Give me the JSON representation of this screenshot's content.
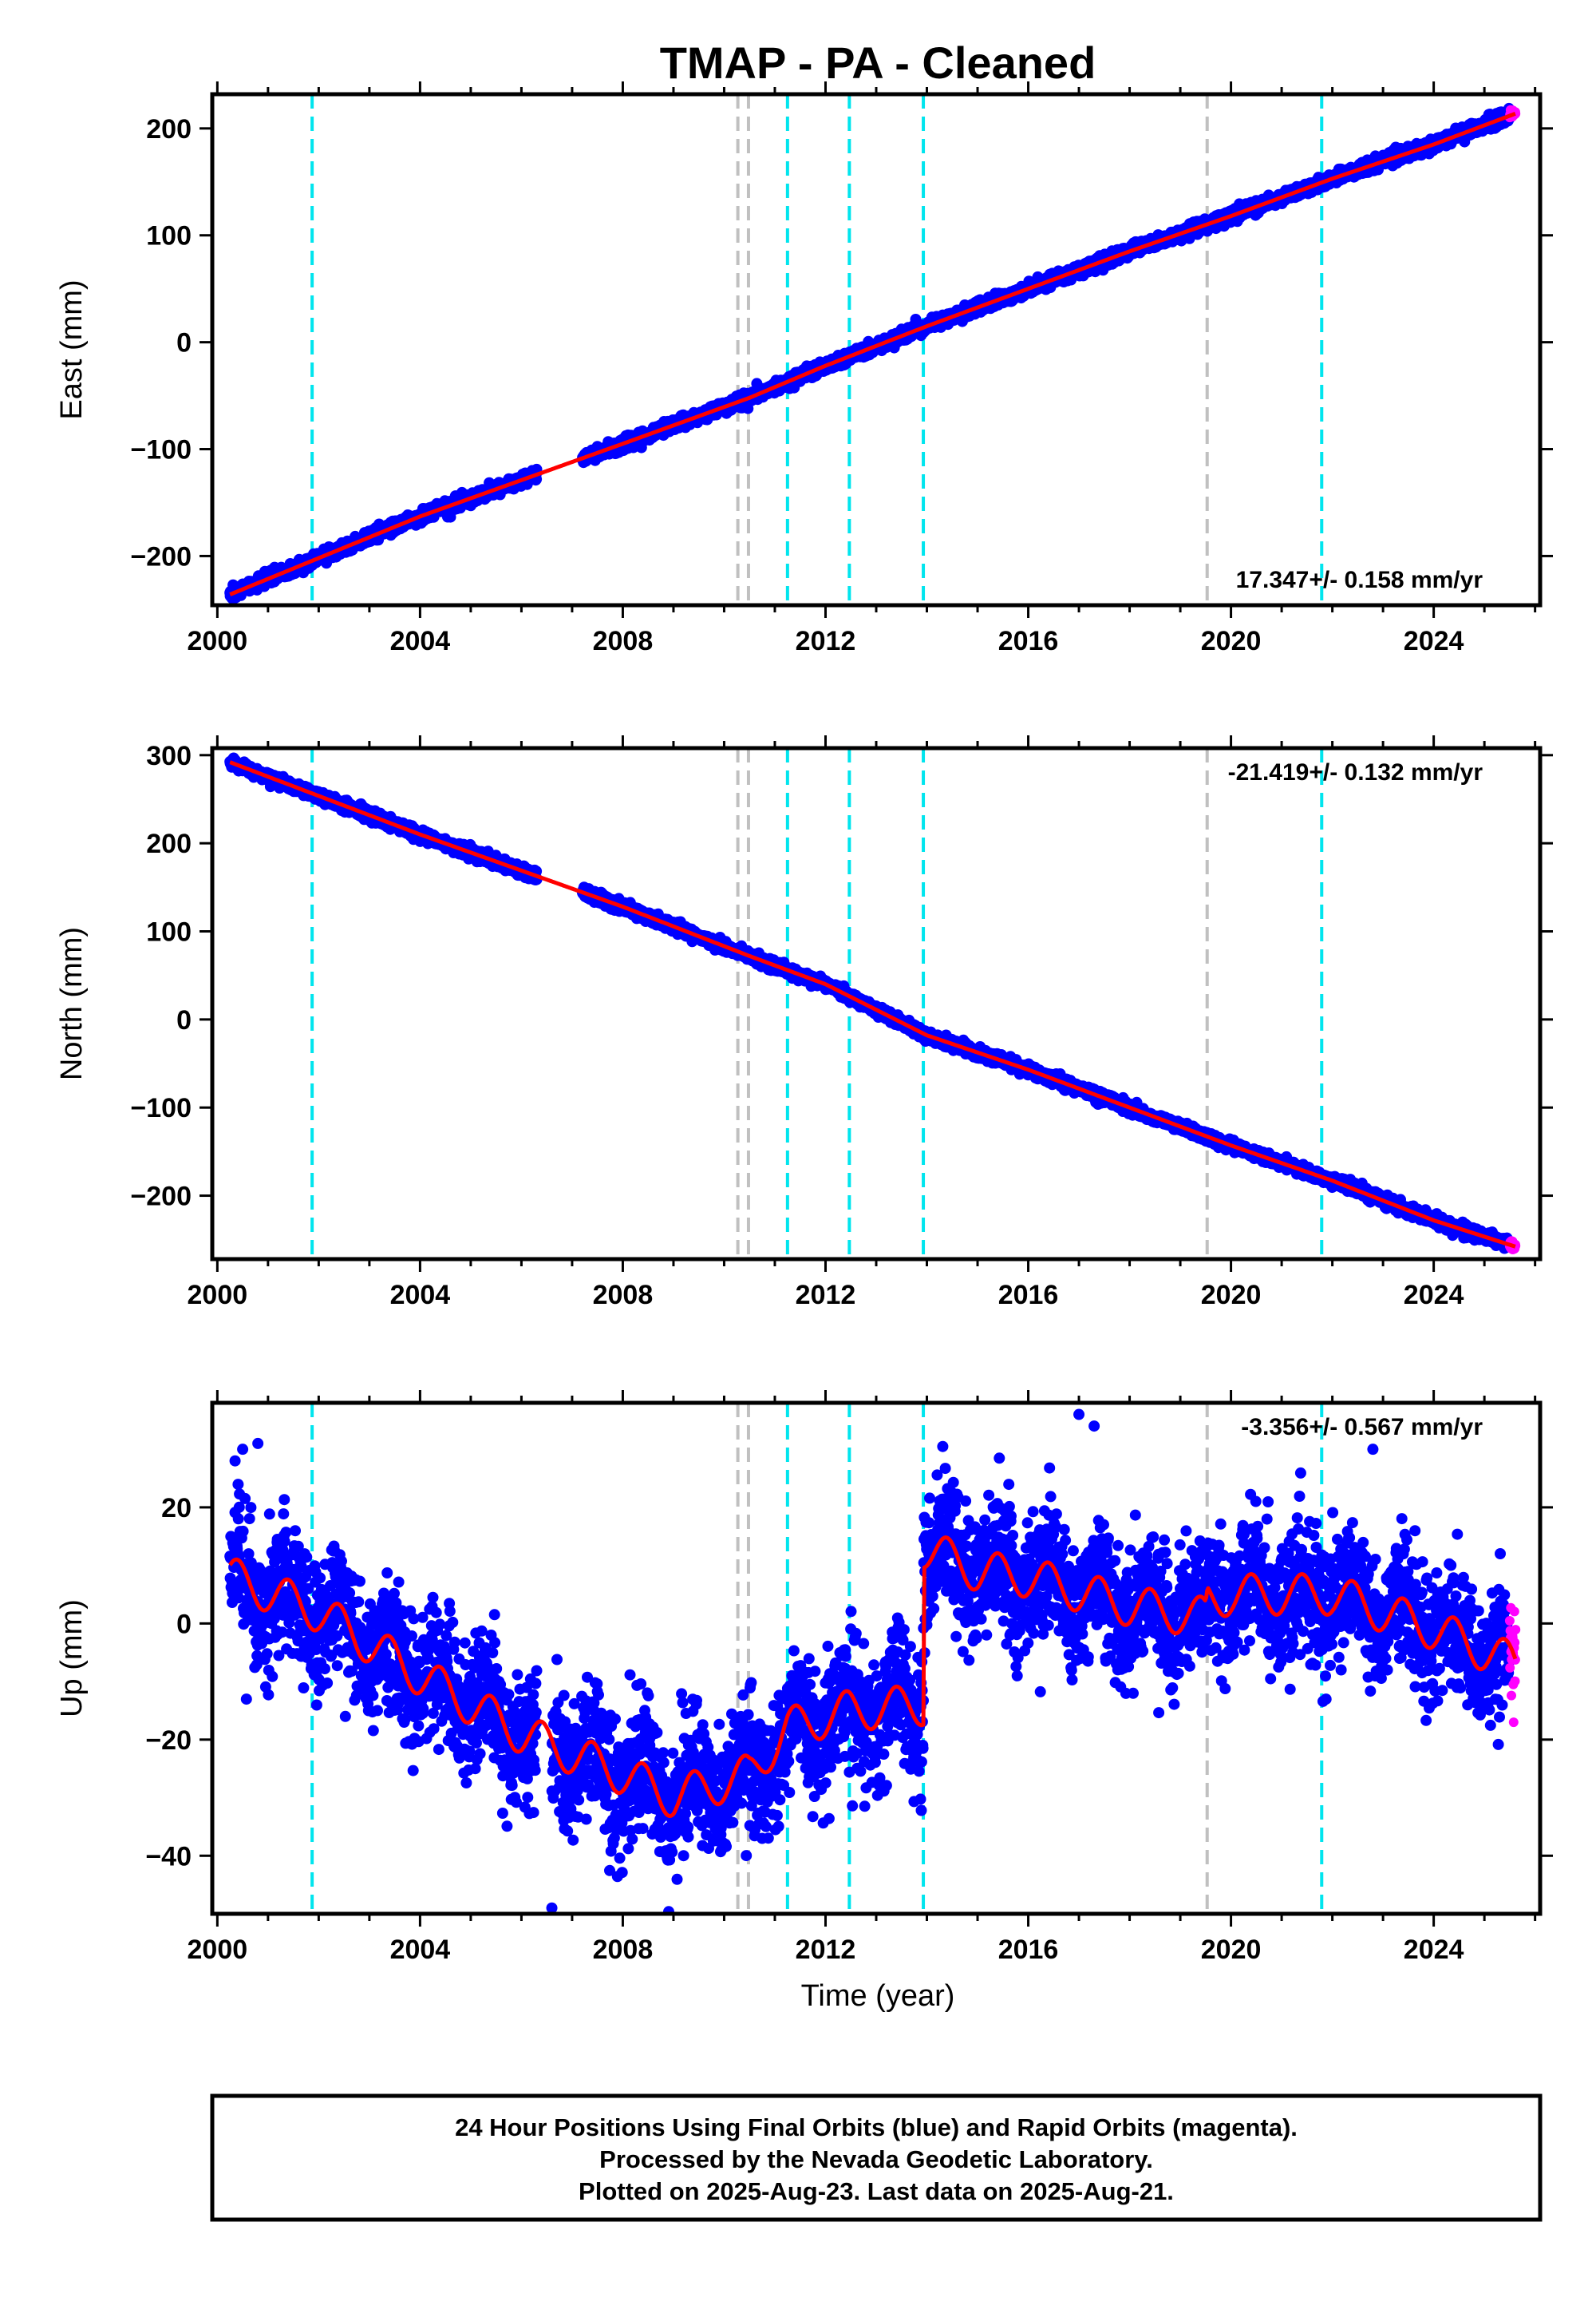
{
  "chart_data": {
    "type": "scatter",
    "title": "TMAP  - PA - Cleaned",
    "xlabel": "Time (year)",
    "x_ticks": [
      2000,
      2004,
      2008,
      2012,
      2016,
      2020,
      2024
    ],
    "xlim": [
      1999.9,
      2026.1
    ],
    "colors": {
      "final_orbits": "#0000ff",
      "rapid_orbits": "#ff00ff",
      "model": "#ff0000",
      "equipment_change": "#00e5ee",
      "earthquake": "#c0c0c0"
    },
    "series_legend": "24 Hour Positions Using Final Orbits (blue) and Rapid Orbits (magenta).",
    "vertical_lines": {
      "cyan": [
        2001.87,
        2011.25,
        2012.47,
        2013.93,
        2021.79
      ],
      "gray": [
        2010.27,
        2010.48,
        2019.53
      ]
    },
    "panels": [
      {
        "ylabel": "East (mm)",
        "ylim": [
          -246,
          232
        ],
        "y_ticks": [
          -200,
          -100,
          0,
          100,
          200
        ],
        "rate_text": "17.347+/- 0.158 mm/yr",
        "rate_position": "bottom-right",
        "trend_points": [
          [
            2000.25,
            -236
          ],
          [
            2004,
            -163
          ],
          [
            2008,
            -95
          ],
          [
            2010.5,
            -52
          ],
          [
            2012,
            -22
          ],
          [
            2014,
            15
          ],
          [
            2016,
            50
          ],
          [
            2018,
            85
          ],
          [
            2020,
            118
          ],
          [
            2022,
            153
          ],
          [
            2024,
            185
          ],
          [
            2025.62,
            214
          ]
        ],
        "data_gap": [
          2006.3,
          2007.2
        ],
        "scatter_sd": 2.8
      },
      {
        "ylabel": "North (mm)",
        "ylim": [
          -272,
          308
        ],
        "y_ticks": [
          -200,
          -100,
          0,
          100,
          200,
          300
        ],
        "rate_text": "-21.419+/- 0.132 mm/yr",
        "rate_position": "top-right",
        "trend_points": [
          [
            2000.25,
            292
          ],
          [
            2004,
            210
          ],
          [
            2008,
            128
          ],
          [
            2010.5,
            72
          ],
          [
            2012,
            40
          ],
          [
            2014,
            -18
          ],
          [
            2016,
            -57
          ],
          [
            2018,
            -100
          ],
          [
            2020,
            -143
          ],
          [
            2022,
            -183
          ],
          [
            2024,
            -228
          ],
          [
            2025.62,
            -258
          ]
        ],
        "data_gap": [
          2006.3,
          2007.2
        ],
        "scatter_sd": 3
      },
      {
        "ylabel": "Up (mm)",
        "ylim": [
          -50,
          38
        ],
        "y_ticks": [
          -40,
          -20,
          0,
          20
        ],
        "rate_text": "-3.356+/- 0.567 mm/yr",
        "rate_position": "top-right",
        "trend_points": [
          [
            2000.25,
            8
          ],
          [
            2002,
            2
          ],
          [
            2004,
            -9
          ],
          [
            2006,
            -19
          ],
          [
            2008,
            -26
          ],
          [
            2009,
            -30
          ],
          [
            2010.5,
            -26
          ],
          [
            2011.25,
            -18
          ],
          [
            2012.47,
            -15
          ],
          [
            2013.93,
            -14
          ],
          [
            2013.94,
            13
          ],
          [
            2015,
            9
          ],
          [
            2016,
            8
          ],
          [
            2018,
            3
          ],
          [
            2019.5,
            1
          ],
          [
            2019.54,
            4
          ],
          [
            2020,
            5
          ],
          [
            2022,
            5
          ],
          [
            2024,
            -1
          ],
          [
            2025.62,
            -7
          ]
        ],
        "seasonal_amplitude": 3.5,
        "data_gap": [
          2006.3,
          2006.6
        ],
        "scatter_sd": 5.5,
        "outliers": [
          [
            2000.35,
            28
          ],
          [
            2000.5,
            30
          ],
          [
            2000.8,
            31
          ],
          [
            2006.6,
            -49
          ],
          [
            2017.0,
            36
          ],
          [
            2017.3,
            34
          ],
          [
            2022.8,
            30
          ]
        ]
      }
    ]
  },
  "footer": {
    "line1": "24 Hour Positions Using Final Orbits (blue) and Rapid Orbits (magenta).",
    "line2": "Processed by the Nevada Geodetic Laboratory.",
    "line3": "Plotted on 2025-Aug-23. Last data on 2025-Aug-21."
  }
}
